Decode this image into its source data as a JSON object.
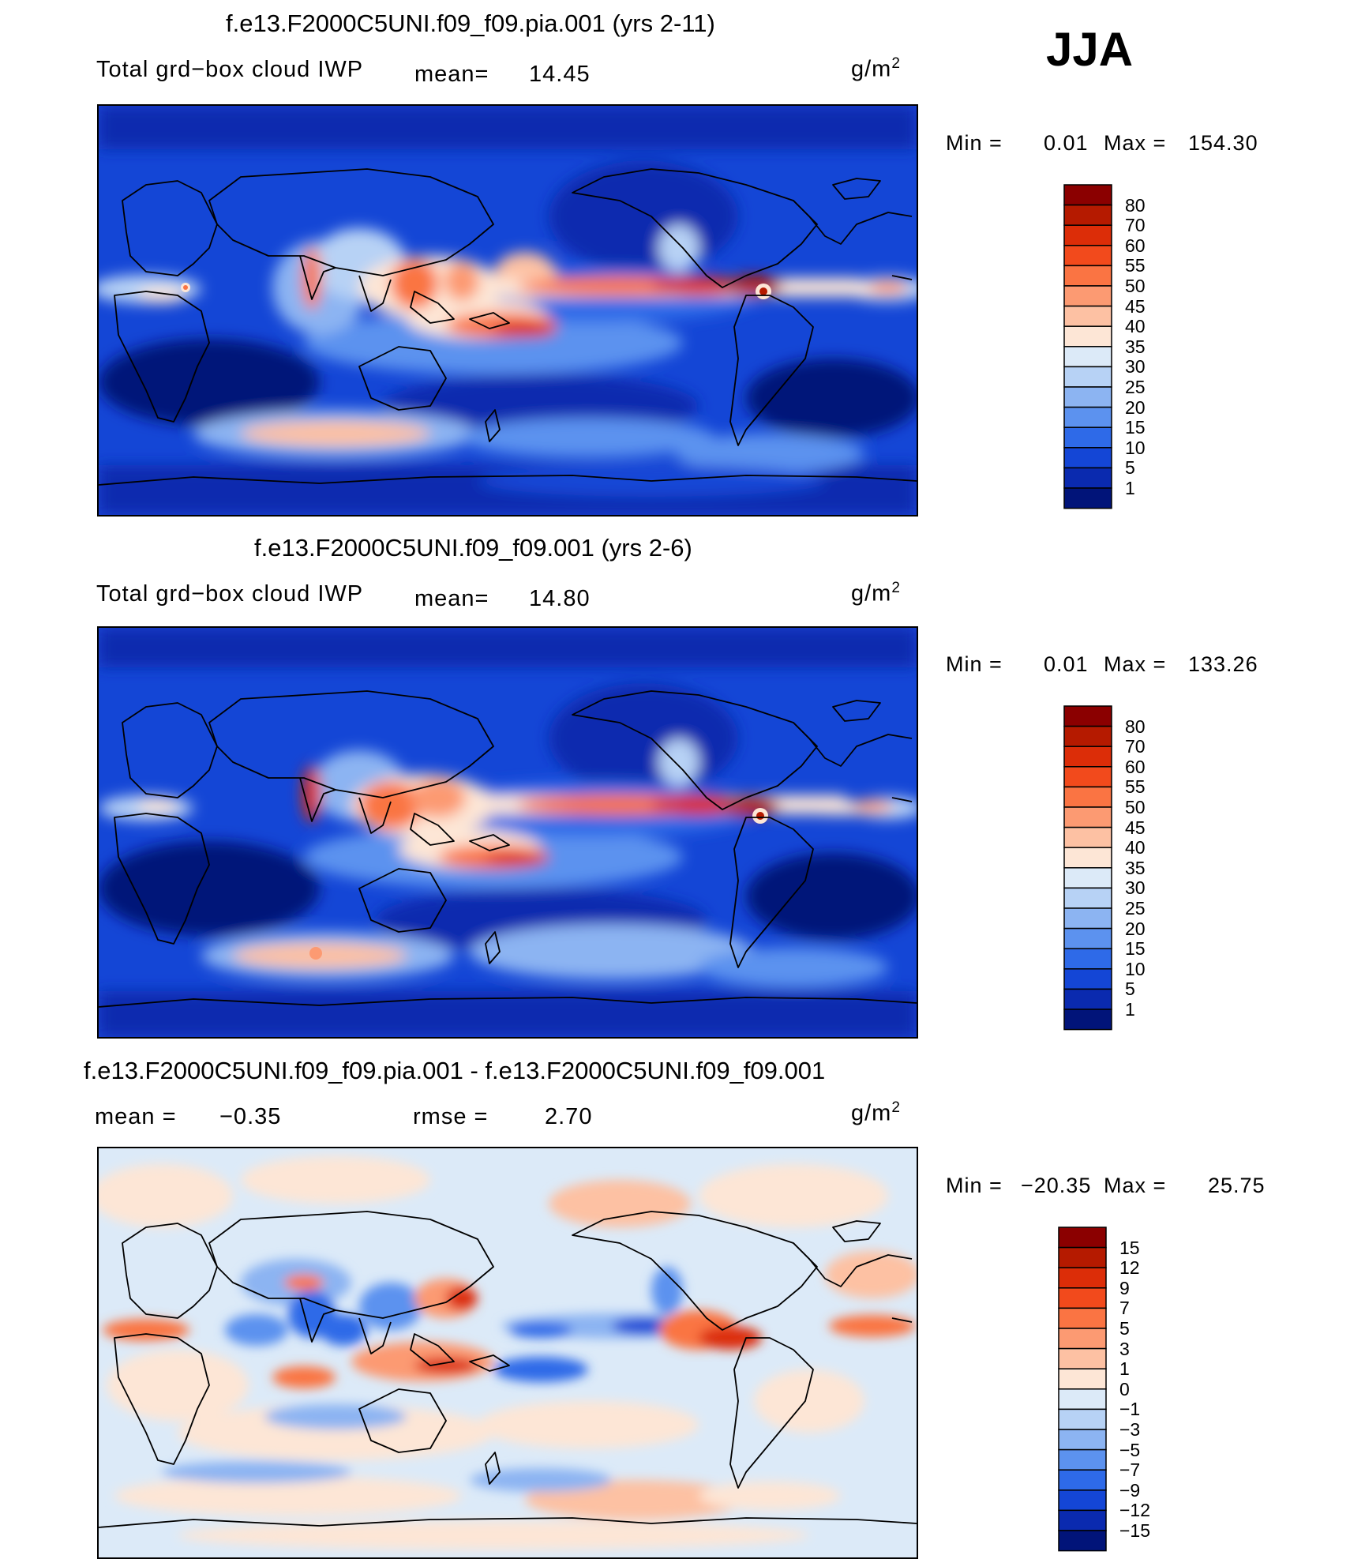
{
  "season": "JJA",
  "panels": [
    {
      "title": "f.e13.F2000C5UNI.f09_f09.pia.001 (yrs 2-11)",
      "variable": "Total grd−box cloud IWP",
      "stat1_label": "mean=",
      "stat1_value": "14.45",
      "units_base": "g/m",
      "units_exp": "2",
      "min_label": "Min =",
      "min_value": "0.01",
      "max_label": "Max =",
      "max_value": "154.30"
    },
    {
      "title": "f.e13.F2000C5UNI.f09_f09.001 (yrs 2-6)",
      "variable": "Total grd−box cloud IWP",
      "stat1_label": "mean=",
      "stat1_value": "14.80",
      "units_base": "g/m",
      "units_exp": "2",
      "min_label": "Min =",
      "min_value": "0.01",
      "max_label": "Max =",
      "max_value": "133.26"
    },
    {
      "title": "f.e13.F2000C5UNI.f09_f09.pia.001 - f.e13.F2000C5UNI.f09_f09.001",
      "stat1_label": "mean =",
      "stat1_value": "−0.35",
      "stat2_label": "rmse =",
      "stat2_value": "2.70",
      "units_base": "g/m",
      "units_exp": "2",
      "min_label": "Min =",
      "min_value": "−20.35",
      "max_label": "Max =",
      "max_value": "25.75"
    }
  ],
  "chart_data": [
    {
      "type": "heatmap",
      "title": "f.e13.F2000C5UNI.f09_f09.pia.001 (yrs 2-11)",
      "variable": "Total grd-box cloud IWP",
      "units": "g/m2",
      "mean": 14.45,
      "min": 0.01,
      "max": 154.3,
      "colorbar_levels": [
        "80",
        "70",
        "60",
        "55",
        "50",
        "45",
        "40",
        "35",
        "30",
        "25",
        "20",
        "15",
        "10",
        "5",
        "1"
      ],
      "colorbar_colors": [
        "#8b0000",
        "#b51a00",
        "#dc2d08",
        "#f24a1c",
        "#fa7443",
        "#fc9a72",
        "#fdc1a3",
        "#fde6d6",
        "#dceaf8",
        "#b7d2f5",
        "#8cb4f2",
        "#5c92ef",
        "#2e6ae8",
        "#1446d6",
        "#0a2aaf",
        "#011479"
      ]
    },
    {
      "type": "heatmap",
      "title": "f.e13.F2000C5UNI.f09_f09.001 (yrs 2-6)",
      "variable": "Total grd-box cloud IWP",
      "units": "g/m2",
      "mean": 14.8,
      "min": 0.01,
      "max": 133.26,
      "colorbar_levels": [
        "80",
        "70",
        "60",
        "55",
        "50",
        "45",
        "40",
        "35",
        "30",
        "25",
        "20",
        "15",
        "10",
        "5",
        "1"
      ],
      "colorbar_colors": [
        "#8b0000",
        "#b51a00",
        "#dc2d08",
        "#f24a1c",
        "#fa7443",
        "#fc9a72",
        "#fdc1a3",
        "#fde6d6",
        "#dceaf8",
        "#b7d2f5",
        "#8cb4f2",
        "#5c92ef",
        "#2e6ae8",
        "#1446d6",
        "#0a2aaf",
        "#011479"
      ]
    },
    {
      "type": "heatmap",
      "title": "f.e13.F2000C5UNI.f09_f09.pia.001 - f.e13.F2000C5UNI.f09_f09.001",
      "units": "g/m2",
      "mean": -0.35,
      "rmse": 2.7,
      "min": -20.35,
      "max": 25.75,
      "colorbar_levels": [
        "15",
        "12",
        "9",
        "7",
        "5",
        "3",
        "1",
        "0",
        "−1",
        "−3",
        "−5",
        "−7",
        "−9",
        "−12",
        "−15"
      ],
      "colorbar_colors": [
        "#8b0000",
        "#b51a00",
        "#dc2d08",
        "#f24a1c",
        "#fa7443",
        "#fc9a72",
        "#fdc1a3",
        "#fde6d6",
        "#dceaf8",
        "#b7d2f5",
        "#8cb4f2",
        "#5c92ef",
        "#2e6ae8",
        "#1446d6",
        "#0a2aaf",
        "#011479"
      ]
    }
  ]
}
